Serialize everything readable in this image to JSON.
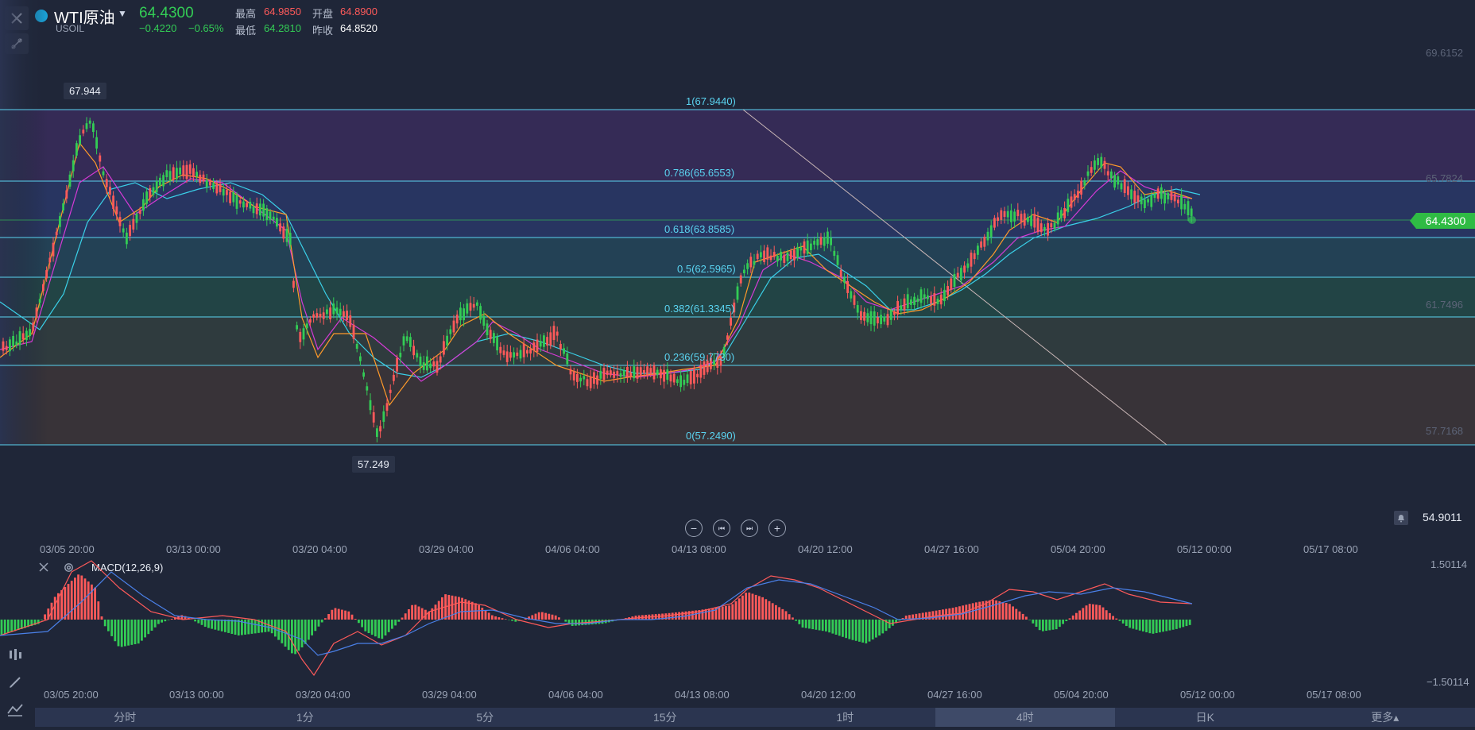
{
  "header": {
    "symbol_name": "WTI原油",
    "symbol_code": "USOIL",
    "price": "64.4300",
    "change": "−0.4220",
    "change_pct": "−0.65%",
    "high_label": "最高",
    "high_value": "64.9850",
    "open_label": "开盘",
    "open_value": "64.8900",
    "low_label": "最低",
    "low_value": "64.2810",
    "prev_close_label": "昨收",
    "prev_close_value": "64.8520"
  },
  "price_axis": [
    "69.6152",
    "65.7824",
    "61.7496",
    "57.7168"
  ],
  "current_price_tag": "64.4300",
  "alert_value": "54.9011",
  "markers": {
    "high": "67.944",
    "low": "57.249"
  },
  "fib_levels": [
    {
      "label": "1(67.9440)",
      "value": 67.944
    },
    {
      "label": "0.786(65.6553)",
      "value": 65.6553
    },
    {
      "label": "0.618(63.8585)",
      "value": 63.8585
    },
    {
      "label": "0.5(62.5965)",
      "value": 62.5965
    },
    {
      "label": "0.382(61.3345)",
      "value": 61.3345
    },
    {
      "label": "0.236(59.7730)",
      "value": 59.773
    },
    {
      "label": "0(57.2490)",
      "value": 57.249
    }
  ],
  "time_axis": [
    "03/05 20:00",
    "03/13 00:00",
    "03/20 04:00",
    "03/29 04:00",
    "04/06 04:00",
    "04/13 08:00",
    "04/20 12:00",
    "04/27 16:00",
    "05/04 20:00",
    "05/12 00:00",
    "05/17 08:00"
  ],
  "macd": {
    "label": "MACD(12,26,9)",
    "axis_top": "1.50114",
    "axis_bottom": "−1.50114"
  },
  "tabs": [
    "分时",
    "1分",
    "5分",
    "15分",
    "1时",
    "4时",
    "日K",
    "更多▴"
  ],
  "active_tab": "4时",
  "colors": {
    "up": "#ff5a5a",
    "down": "#33cc55",
    "fib_line": "#5ad3f0",
    "background": "#1f2638"
  },
  "icons": [
    "close-icon",
    "draw-tool-icon",
    "zoom-out-icon",
    "skip-back-icon",
    "skip-forward-icon",
    "zoom-in-icon",
    "bell-icon",
    "gear-icon",
    "candles-icon",
    "pencil-icon",
    "indicator-icon"
  ]
}
